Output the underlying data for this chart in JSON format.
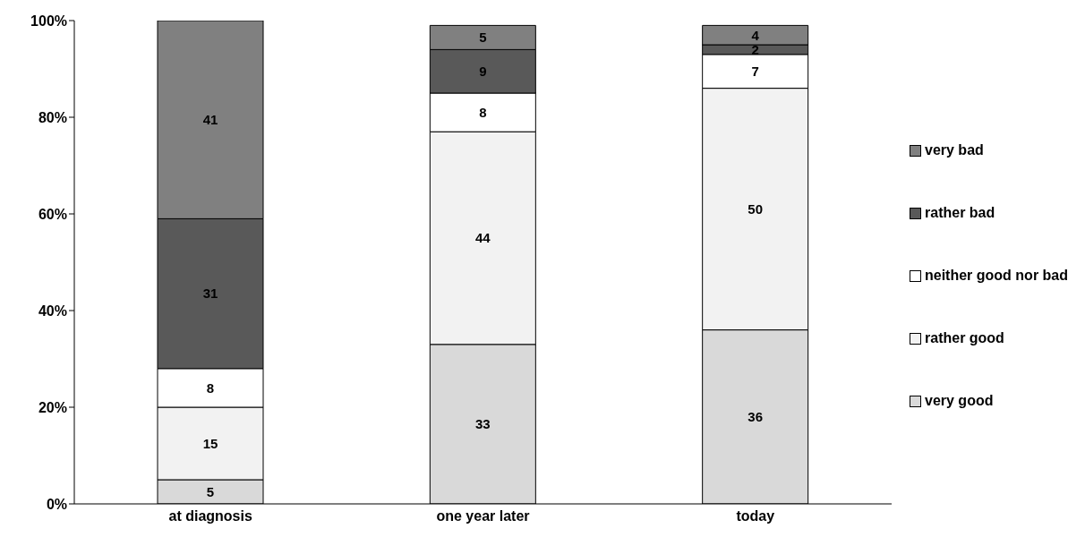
{
  "chart_data": {
    "type": "bar",
    "stacked": true,
    "categories": [
      "at diagnosis",
      "one year later",
      "today"
    ],
    "series": [
      {
        "name": "very good",
        "color": "#d9d9d9",
        "values": [
          5,
          33,
          36
        ]
      },
      {
        "name": "rather good",
        "color": "#f2f2f2",
        "values": [
          15,
          44,
          50
        ]
      },
      {
        "name": "neither good nor bad",
        "color": "#ffffff",
        "values": [
          8,
          8,
          7
        ]
      },
      {
        "name": "rather bad",
        "color": "#595959",
        "values": [
          31,
          9,
          2
        ]
      },
      {
        "name": "very bad",
        "color": "#808080",
        "values": [
          41,
          5,
          4
        ]
      }
    ],
    "ylim": [
      0,
      100
    ],
    "yticks": [
      {
        "value": 0,
        "label": "0%"
      },
      {
        "value": 20,
        "label": "20%"
      },
      {
        "value": 40,
        "label": "40%"
      },
      {
        "value": 60,
        "label": "60%"
      },
      {
        "value": 80,
        "label": "80%"
      },
      {
        "value": 100,
        "label": "100%"
      }
    ],
    "data_labels": true,
    "legend": "right",
    "grid": false
  }
}
